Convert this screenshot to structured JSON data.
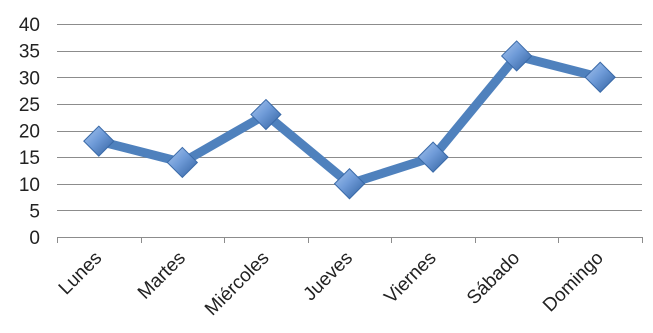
{
  "chart_data": {
    "type": "line",
    "title": "",
    "xlabel": "",
    "ylabel": "",
    "categories": [
      "Lunes",
      "Martes",
      "Miércoles",
      "Jueves",
      "Viernes",
      "Sábado",
      "Domingo"
    ],
    "series": [
      {
        "values": [
          18,
          14,
          23,
          10,
          15,
          34,
          30
        ],
        "color": "#4f81bd",
        "marker": "diamond"
      }
    ],
    "ylim": [
      0,
      40
    ],
    "yticks": [
      0,
      5,
      10,
      15,
      20,
      25,
      30,
      35,
      40
    ],
    "grid": true,
    "legend": "none"
  }
}
